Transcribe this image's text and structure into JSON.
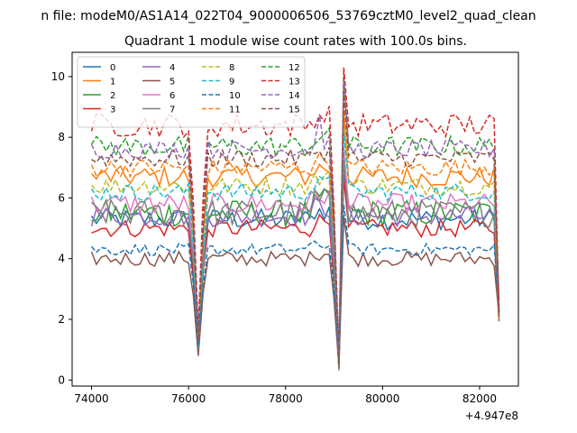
{
  "figure": {
    "suptitle": "n file: modeM0/AS1A14_022T04_9000006506_53769cztM0_level2_quad_clean",
    "x_offset_label": "+4.947e8"
  },
  "chart_data": {
    "type": "line",
    "title": "Quadrant 1 module wise count rates with 100.0s bins.",
    "xlabel": "",
    "ylabel": "",
    "x_offset": 494700000,
    "xlim": [
      73600,
      82800
    ],
    "ylim": [
      -0.2,
      10.8
    ],
    "x_ticks": [
      74000,
      76000,
      78000,
      80000,
      82000
    ],
    "x_tick_labels": [
      "74000",
      "76000",
      "78000",
      "80000",
      "82000"
    ],
    "y_ticks": [
      0,
      2,
      4,
      6,
      8,
      10
    ],
    "y_tick_labels": [
      "0",
      "2",
      "4",
      "6",
      "8",
      "10"
    ],
    "legend": {
      "placement": "top-left",
      "columns": 4
    },
    "grid": false,
    "series": [
      {
        "name": "0",
        "color": "#1f77b4",
        "dash": "solid",
        "base": 5.3,
        "amp": 0.35
      },
      {
        "name": "1",
        "color": "#ff7f0e",
        "dash": "solid",
        "base": 6.7,
        "amp": 0.35
      },
      {
        "name": "2",
        "color": "#2ca02c",
        "dash": "solid",
        "base": 5.5,
        "amp": 0.45
      },
      {
        "name": "3",
        "color": "#d62728",
        "dash": "solid",
        "base": 5.0,
        "amp": 0.3
      },
      {
        "name": "4",
        "color": "#9467bd",
        "dash": "solid",
        "base": 5.4,
        "amp": 0.35
      },
      {
        "name": "5",
        "color": "#8c564b",
        "dash": "solid",
        "base": 4.0,
        "amp": 0.25
      },
      {
        "name": "6",
        "color": "#e377c2",
        "dash": "solid",
        "base": 5.8,
        "amp": 0.35
      },
      {
        "name": "7",
        "color": "#7f7f7f",
        "dash": "solid",
        "base": 5.5,
        "amp": 0.45
      },
      {
        "name": "8",
        "color": "#bcbd22",
        "dash": "dashed",
        "base": 6.4,
        "amp": 0.3
      },
      {
        "name": "9",
        "color": "#17becf",
        "dash": "dashed",
        "base": 6.2,
        "amp": 0.3
      },
      {
        "name": "10",
        "color": "#1f77b4",
        "dash": "dashed",
        "base": 4.3,
        "amp": 0.2
      },
      {
        "name": "11",
        "color": "#ff7f0e",
        "dash": "dashed",
        "base": 7.0,
        "amp": 0.3
      },
      {
        "name": "12",
        "color": "#2ca02c",
        "dash": "dashed",
        "base": 7.7,
        "amp": 0.35
      },
      {
        "name": "13",
        "color": "#d62728",
        "dash": "dashed",
        "base": 8.4,
        "amp": 0.4
      },
      {
        "name": "14",
        "color": "#9467bd",
        "dash": "dashed",
        "base": 7.6,
        "amp": 0.3
      },
      {
        "name": "15",
        "color": "#8c564b",
        "dash": "dashed",
        "base": 7.3,
        "amp": 0.3
      }
    ],
    "x_start": 74000,
    "x_end": 82400,
    "bin": 100,
    "dips": [
      {
        "x": 76200,
        "depth": 0.15
      },
      {
        "x": 79100,
        "depth": 0.05
      }
    ],
    "peak": {
      "x": 79200,
      "gain": 1.25
    }
  }
}
